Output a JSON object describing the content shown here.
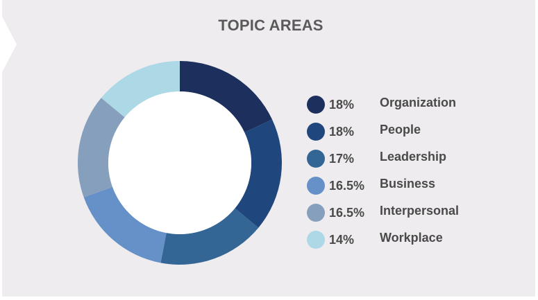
{
  "chart_data": {
    "type": "pie",
    "title": "TOPIC AREAS",
    "categories": [
      "Organization",
      "People",
      "Leadership",
      "Business",
      "Interpersonal",
      "Workplace"
    ],
    "values": [
      18,
      18,
      17,
      16.5,
      16.5,
      14
    ],
    "value_labels": [
      "18%",
      "18%",
      "17%",
      "16.5%",
      "16.5%",
      "14%"
    ],
    "colors": [
      "#1d2f5c",
      "#20477d",
      "#336694",
      "#6590c8",
      "#869fbd",
      "#add8e6"
    ],
    "legend_position": "right"
  }
}
